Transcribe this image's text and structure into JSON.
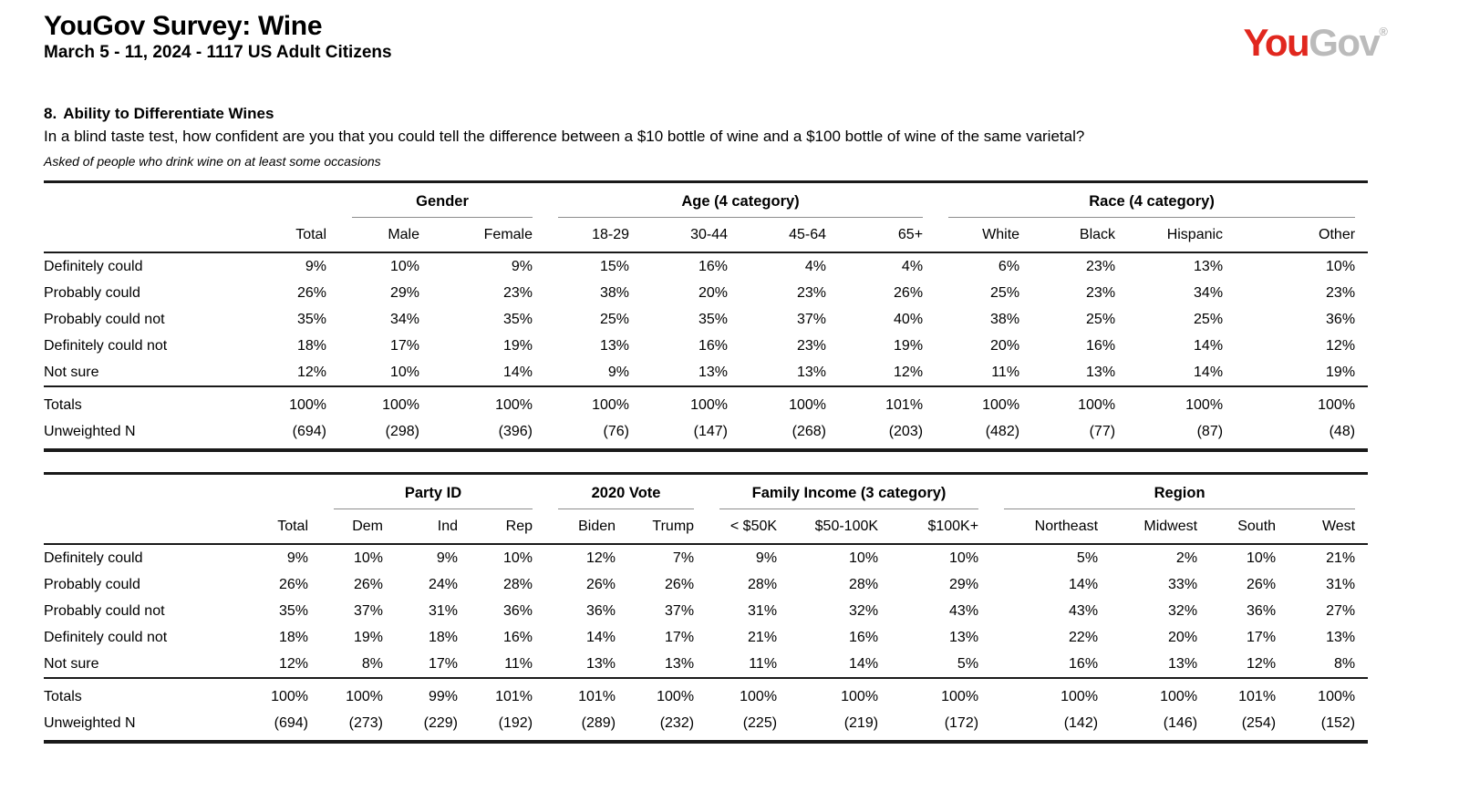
{
  "header": {
    "title": "YouGov Survey: Wine",
    "subtitle": "March 5 - 11, 2024 - 1117 US Adult Citizens",
    "logo": {
      "part1": "You",
      "part2": "Gov",
      "registered": "®",
      "red": "#E1271E",
      "gray": "#BBBBBB"
    }
  },
  "question": {
    "number": "8.",
    "title": "Ability to Differentiate Wines",
    "text": "In a blind taste test, how confident are you that you could tell the difference between a $10 bottle of wine and a $100 bottle of wine of the same varietal?",
    "note": "Asked of people who drink wine on at least some occasions"
  },
  "tables": [
    {
      "col_groups": [
        {
          "label": "",
          "span": 1
        },
        {
          "label": "Gender",
          "span": 2
        },
        {
          "label": "Age (4 category)",
          "span": 4
        },
        {
          "label": "Race (4 category)",
          "span": 4
        }
      ],
      "columns": [
        "Total",
        "Male",
        "Female",
        "18-29",
        "30-44",
        "45-64",
        "65+",
        "White",
        "Black",
        "Hispanic",
        "Other"
      ],
      "rows": [
        {
          "label": "Definitely could",
          "values": [
            "9%",
            "10%",
            "9%",
            "15%",
            "16%",
            "4%",
            "4%",
            "6%",
            "23%",
            "13%",
            "10%"
          ]
        },
        {
          "label": "Probably could",
          "values": [
            "26%",
            "29%",
            "23%",
            "38%",
            "20%",
            "23%",
            "26%",
            "25%",
            "23%",
            "34%",
            "23%"
          ]
        },
        {
          "label": "Probably could not",
          "values": [
            "35%",
            "34%",
            "35%",
            "25%",
            "35%",
            "37%",
            "40%",
            "38%",
            "25%",
            "25%",
            "36%"
          ]
        },
        {
          "label": "Definitely could not",
          "values": [
            "18%",
            "17%",
            "19%",
            "13%",
            "16%",
            "23%",
            "19%",
            "20%",
            "16%",
            "14%",
            "12%"
          ]
        },
        {
          "label": "Not sure",
          "values": [
            "12%",
            "10%",
            "14%",
            "9%",
            "13%",
            "13%",
            "12%",
            "11%",
            "13%",
            "14%",
            "19%"
          ]
        }
      ],
      "totals": {
        "label": "Totals",
        "values": [
          "100%",
          "100%",
          "100%",
          "100%",
          "100%",
          "100%",
          "101%",
          "100%",
          "100%",
          "100%",
          "100%"
        ]
      },
      "unweighted": {
        "label": "Unweighted N",
        "values": [
          "(694)",
          "(298)",
          "(396)",
          "(76)",
          "(147)",
          "(268)",
          "(203)",
          "(482)",
          "(77)",
          "(87)",
          "(48)"
        ]
      }
    },
    {
      "col_groups": [
        {
          "label": "",
          "span": 1
        },
        {
          "label": "Party ID",
          "span": 3
        },
        {
          "label": "2020 Vote",
          "span": 2
        },
        {
          "label": "Family Income (3 category)",
          "span": 3
        },
        {
          "label": "Region",
          "span": 4
        }
      ],
      "columns": [
        "Total",
        "Dem",
        "Ind",
        "Rep",
        "Biden",
        "Trump",
        "< $50K",
        "$50-100K",
        "$100K+",
        "Northeast",
        "Midwest",
        "South",
        "West"
      ],
      "rows": [
        {
          "label": "Definitely could",
          "values": [
            "9%",
            "10%",
            "9%",
            "10%",
            "12%",
            "7%",
            "9%",
            "10%",
            "10%",
            "5%",
            "2%",
            "10%",
            "21%"
          ]
        },
        {
          "label": "Probably could",
          "values": [
            "26%",
            "26%",
            "24%",
            "28%",
            "26%",
            "26%",
            "28%",
            "28%",
            "29%",
            "14%",
            "33%",
            "26%",
            "31%"
          ]
        },
        {
          "label": "Probably could not",
          "values": [
            "35%",
            "37%",
            "31%",
            "36%",
            "36%",
            "37%",
            "31%",
            "32%",
            "43%",
            "43%",
            "32%",
            "36%",
            "27%"
          ]
        },
        {
          "label": "Definitely could not",
          "values": [
            "18%",
            "19%",
            "18%",
            "16%",
            "14%",
            "17%",
            "21%",
            "16%",
            "13%",
            "22%",
            "20%",
            "17%",
            "13%"
          ]
        },
        {
          "label": "Not sure",
          "values": [
            "12%",
            "8%",
            "17%",
            "11%",
            "13%",
            "13%",
            "11%",
            "14%",
            "5%",
            "16%",
            "13%",
            "12%",
            "8%"
          ]
        }
      ],
      "totals": {
        "label": "Totals",
        "values": [
          "100%",
          "100%",
          "99%",
          "101%",
          "101%",
          "100%",
          "100%",
          "100%",
          "100%",
          "100%",
          "100%",
          "101%",
          "100%"
        ]
      },
      "unweighted": {
        "label": "Unweighted N",
        "values": [
          "(694)",
          "(273)",
          "(229)",
          "(192)",
          "(289)",
          "(232)",
          "(225)",
          "(219)",
          "(172)",
          "(142)",
          "(146)",
          "(254)",
          "(152)"
        ]
      }
    }
  ]
}
